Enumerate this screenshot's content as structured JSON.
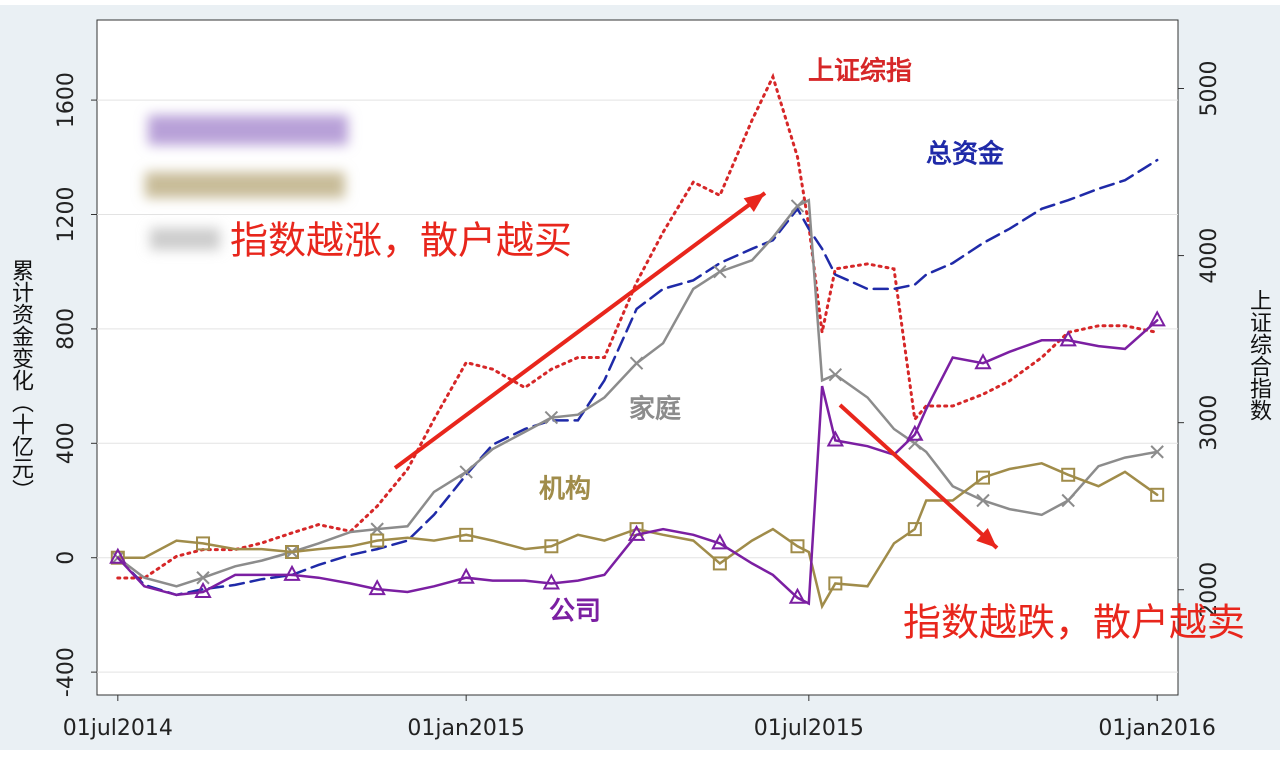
{
  "chart_data": {
    "type": "line",
    "y_label": "累计资金变化（十亿元）",
    "y2_label": "上证综合指数",
    "x": [
      "2014-07-01",
      "2014-07-15",
      "2014-08-01",
      "2014-08-15",
      "2014-09-01",
      "2014-09-15",
      "2014-10-01",
      "2014-10-15",
      "2014-11-01",
      "2014-11-15",
      "2014-12-01",
      "2014-12-15",
      "2015-01-01",
      "2015-01-15",
      "2015-02-01",
      "2015-02-15",
      "2015-03-01",
      "2015-03-15",
      "2015-04-01",
      "2015-04-15",
      "2015-05-01",
      "2015-05-15",
      "2015-06-01",
      "2015-06-12",
      "2015-06-25",
      "2015-07-01",
      "2015-07-08",
      "2015-07-15",
      "2015-08-01",
      "2015-08-15",
      "2015-08-26",
      "2015-09-01",
      "2015-09-15",
      "2015-10-01",
      "2015-10-15",
      "2015-11-01",
      "2015-11-15",
      "2015-12-01",
      "2015-12-15",
      "2016-01-01"
    ],
    "xlim": [
      "2014-06-20",
      "2016-01-12"
    ],
    "xticks": [
      {
        "value": "2014-07-01",
        "label": "01jul2014"
      },
      {
        "value": "2015-01-01",
        "label": "01jan2015"
      },
      {
        "value": "2015-07-01",
        "label": "01jul2015"
      },
      {
        "value": "2016-01-01",
        "label": "01jan2016"
      }
    ],
    "ylim": [
      -480,
      1880
    ],
    "yticks": [
      -400,
      0,
      400,
      800,
      1200,
      1600
    ],
    "y2lim": [
      1370,
      5410
    ],
    "y2ticks": [
      2000,
      3000,
      4000,
      5000
    ],
    "grid": true,
    "series": [
      {
        "name": "上证综指",
        "color": "#d62728",
        "style": "dotted",
        "axis": "y2",
        "values": [
          2070,
          2070,
          2200,
          2240,
          2240,
          2280,
          2340,
          2390,
          2350,
          2500,
          2720,
          3020,
          3360,
          3320,
          3210,
          3320,
          3390,
          3390,
          3840,
          4140,
          4440,
          4360,
          4810,
          5070,
          4590,
          4180,
          3540,
          3920,
          3950,
          3920,
          3020,
          3100,
          3100,
          3170,
          3250,
          3390,
          3540,
          3580,
          3580,
          3540
        ]
      },
      {
        "name": "总资金",
        "color": "#1f2aa8",
        "style": "dashed",
        "values": [
          0,
          -95,
          -130,
          -110,
          -95,
          -75,
          -60,
          -25,
          10,
          30,
          60,
          150,
          290,
          395,
          450,
          480,
          480,
          620,
          870,
          940,
          970,
          1030,
          1080,
          1110,
          1220,
          1150,
          1080,
          990,
          940,
          940,
          955,
          990,
          1030,
          1100,
          1150,
          1220,
          1250,
          1290,
          1320,
          1390
        ]
      },
      {
        "name": "家庭",
        "color": "#8c8c8c",
        "style": "solid",
        "marker": "x",
        "values": [
          0,
          -70,
          -100,
          -70,
          -30,
          -10,
          20,
          50,
          90,
          100,
          110,
          230,
          300,
          380,
          440,
          490,
          500,
          560,
          680,
          750,
          940,
          1000,
          1040,
          1120,
          1230,
          1250,
          620,
          640,
          560,
          450,
          400,
          370,
          250,
          200,
          170,
          150,
          200,
          320,
          350,
          370
        ]
      },
      {
        "name": "机构",
        "color": "#a08c4a",
        "style": "solid",
        "marker": "square",
        "values": [
          0,
          0,
          60,
          50,
          30,
          30,
          20,
          30,
          40,
          60,
          70,
          60,
          80,
          60,
          30,
          40,
          80,
          60,
          100,
          80,
          60,
          -20,
          60,
          100,
          40,
          20,
          -170,
          -90,
          -100,
          50,
          100,
          200,
          200,
          280,
          310,
          330,
          290,
          250,
          300,
          220
        ]
      },
      {
        "name": "公司",
        "color": "#7b1fa2",
        "style": "solid",
        "marker": "triangle",
        "values": [
          0,
          -100,
          -130,
          -120,
          -60,
          -60,
          -60,
          -70,
          -90,
          -110,
          -120,
          -100,
          -70,
          -80,
          -80,
          -90,
          -80,
          -60,
          80,
          100,
          80,
          50,
          -20,
          -60,
          -140,
          -160,
          600,
          410,
          390,
          360,
          430,
          520,
          700,
          680,
          720,
          760,
          760,
          740,
          730,
          830
        ]
      }
    ],
    "annotations": [
      {
        "text": "指数越涨，散户越买",
        "color": "#e8261c"
      },
      {
        "text": "指数越跌，散户越卖",
        "color": "#e8261c"
      }
    ]
  }
}
